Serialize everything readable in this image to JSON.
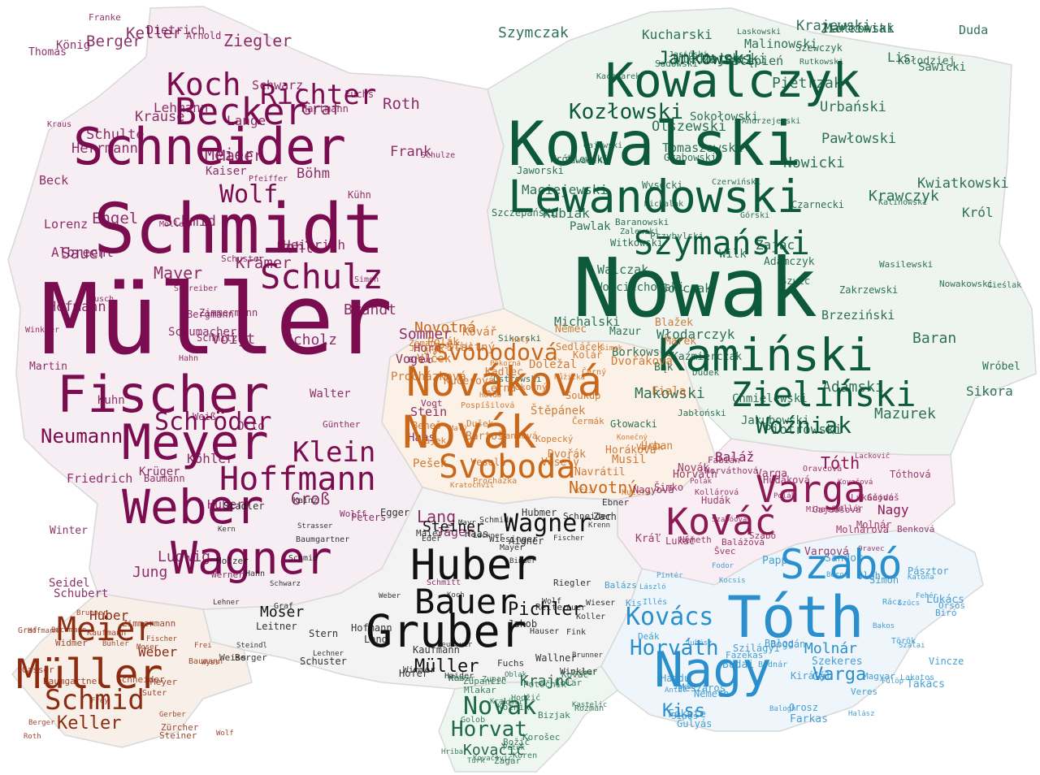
{
  "colors": {
    "germany": "#7a0c4f",
    "poland": "#0c5a3a",
    "czech": "#c9671a",
    "austria": "#111111",
    "hungary": "#2a8fcc",
    "slovakia": "#8c1a55",
    "switzerland": "#8c2b10",
    "slovenia": "#1e6a45"
  },
  "regions": {
    "germany": [
      "Müller",
      "Schmidt",
      "Schneider",
      "Fischer",
      "Meyer",
      "Weber",
      "Wagner",
      "Becker",
      "Schulz",
      "Hoffmann",
      "Koch",
      "Richter",
      "Klein",
      "Wolf",
      "Schröder",
      "Neumann",
      "Schwarz",
      "Zimmermann",
      "Braun",
      "Krüger",
      "Hofmann",
      "Hartmann",
      "Lange",
      "Schmitt",
      "Werner",
      "Schmitz",
      "Krause",
      "Meier",
      "Lehmann",
      "Schmid",
      "Schulze",
      "Maier",
      "Köhler",
      "Herrmann",
      "König",
      "Walter",
      "Mayer",
      "Huber",
      "Kaiser",
      "Fuchs",
      "Peters",
      "Lang",
      "Scholz",
      "Möller",
      "Weiß",
      "Jung",
      "Hahn",
      "Schubert",
      "Vogel",
      "Friedrich",
      "Keller",
      "Günther",
      "Frank",
      "Berger",
      "Winkler",
      "Roth",
      "Beck",
      "Lorenz",
      "Baumann",
      "Franke",
      "Albrecht",
      "Schuster",
      "Simon",
      "Ludwig",
      "Böhm",
      "Winter",
      "Kraus",
      "Martin",
      "Schumacher",
      "Krämer",
      "Vogt",
      "Stein",
      "Jäger",
      "Otto",
      "Sommer",
      "Groß",
      "Seidel",
      "Heinrich",
      "Brandt",
      "Haas",
      "Schreiber",
      "Graf",
      "Schulte",
      "Dietrich",
      "Ziegler",
      "Kuhn",
      "Kühn",
      "Pohl",
      "Engel",
      "Horn",
      "Busch",
      "Bergmann",
      "Thomas",
      "Voigt",
      "Sauer",
      "Arnold",
      "Wolff",
      "Pfeiffer"
    ],
    "poland": [
      "Nowak",
      "Kowalski",
      "Lewandowski",
      "Kamiński",
      "Kowalczyk",
      "Zieliński",
      "Szymański",
      "Woźniak",
      "Kozłowski",
      "Jankowski",
      "Mazur",
      "Wojciechowski",
      "Kwiatkowski",
      "Krawczyk",
      "Kaczmarek",
      "Piotrowski",
      "Grabowski",
      "Nowakowski",
      "Pawłowski",
      "Michalski",
      "Nowicki",
      "Adamczyk",
      "Dudek",
      "Zając",
      "Wieczorek",
      "Jabłoński",
      "Król",
      "Majewski",
      "Olszewski",
      "Jaworski",
      "Wróbel",
      "Malinowski",
      "Pawlak",
      "Witkowski",
      "Walczak",
      "Stępień",
      "Górski",
      "Rutkowski",
      "Michalak",
      "Sikora",
      "Ostrowski",
      "Baran",
      "Duda",
      "Szewczyk",
      "Tomaszewski",
      "Pietrzak",
      "Marciniak",
      "Wróblewski",
      "Zalewski",
      "Jakubowski",
      "Jasiński",
      "Zawadzki",
      "Sadowski",
      "Bąk",
      "Chmielewski",
      "Włodarczyk",
      "Borkowski",
      "Czarnecki",
      "Sawicki",
      "Sokołowski",
      "Urbański",
      "Kubiak",
      "Maciejewski",
      "Szczepański",
      "Kucharski",
      "Wilk",
      "Kalinowski",
      "Lis",
      "Mazurek",
      "Wysocki",
      "Adamski",
      "Kaźmierczak",
      "Wasilewski",
      "Sobczak",
      "Czerwiński",
      "Andrzejewski",
      "Cieślak",
      "Głowacki",
      "Zakrzewski",
      "Kołodziej",
      "Sikorski",
      "Krajewski",
      "Gajewski",
      "Szymczak",
      "Szulc",
      "Baranowski",
      "Laskowski",
      "Brzeziński",
      "Makowski",
      "Ziółkowski",
      "Przybylski"
    ],
    "czech": [
      "Novák",
      "Nováková",
      "Svoboda",
      "Svobodová",
      "Novotný",
      "Novotná",
      "Dvořák",
      "Dvořáková",
      "Černý",
      "Černá",
      "Procházka",
      "Procházková",
      "Kučera",
      "Kučerová",
      "Veselý",
      "Veselá",
      "Horáková",
      "Němec",
      "Marek",
      "Pokorný",
      "Pokorná",
      "Pospíšil",
      "Pospíšilová",
      "Hájek",
      "Jelínek",
      "Růžička",
      "Beneš",
      "Fiala",
      "Sedláček",
      "Doležal",
      "Zeman",
      "Kolář",
      "Navrátil",
      "Čermák",
      "Urban",
      "Vaněk",
      "Blažek",
      "Kříž",
      "Kovář",
      "Bartoš",
      "Vlček",
      "Polák",
      "Musil",
      "Kopecký",
      "Šimek",
      "Konečný",
      "Malý",
      "Holub",
      "Štěpánek",
      "Kadlec",
      "Král",
      "Dušek",
      "Kratochvíl",
      "Jandová",
      "Šťastný",
      "Pešek",
      "Holý",
      "Soukup"
    ],
    "austria": [
      "Gruber",
      "Huber",
      "Bauer",
      "Wagner",
      "Müller",
      "Pichler",
      "Steiner",
      "Moser",
      "Mayer",
      "Hofer",
      "Leitner",
      "Berger",
      "Fuchs",
      "Eder",
      "Fischer",
      "Schmid",
      "Winkler",
      "Weber",
      "Schwarz",
      "Maier",
      "Schneider",
      "Reiter",
      "Mayr",
      "Schmidt",
      "Wimmer",
      "Egger",
      "Brunner",
      "Lang",
      "Baumgartner",
      "Auer",
      "Binder",
      "Lechner",
      "Wolf",
      "Wallner",
      "Aigner",
      "Ebner",
      "Koller",
      "Lehner",
      "Haas",
      "Schuster",
      "Strasser",
      "Holzer",
      "Weiss",
      "Lackner",
      "Hofmann",
      "Kaufmann",
      "Haider",
      "Wieser",
      "Stadler",
      "Stern",
      "Kern",
      "Jakob",
      "Fink",
      "Hauser",
      "Zach",
      "Wiesinger",
      "Koch",
      "Riegler",
      "Hahn",
      "Neubauer",
      "Hubmer",
      "Graf",
      "Steindl",
      "Krenn",
      "Kainz"
    ],
    "hungary": [
      "Nagy",
      "Tóth",
      "Szabó",
      "Kovács",
      "Horváth",
      "Varga",
      "Kiss",
      "Molnár",
      "Németh",
      "Farkas",
      "Balogh",
      "Papp",
      "Takács",
      "Juhász",
      "Lakatos",
      "Mészáros",
      "Oláh",
      "Simon",
      "Rácz",
      "Fekete",
      "Szilágyi",
      "Török",
      "Fehér",
      "Balázs",
      "Gál",
      "Kis",
      "Szűcs",
      "Kocsis",
      "Orsós",
      "Pintér",
      "Fodor",
      "Szalai",
      "Sipos",
      "Magyar",
      "Lukács",
      "Gulyás",
      "Biró",
      "Király",
      "Balog",
      "László",
      "Katona",
      "Jakab",
      "Bogdán",
      "Antal",
      "Sándor",
      "Fazekas",
      "Halász",
      "Deák",
      "Vincze",
      "Veres",
      "Bakos",
      "Orosz",
      "Bodnár",
      "Pásztor",
      "Budai",
      "Hajdu",
      "Fülöp",
      "Boros",
      "Illés",
      "Szekeres"
    ],
    "slovakia": [
      "Varga",
      "Kováč",
      "Tóth",
      "Nagy",
      "Baláž",
      "Horváth",
      "Szabó",
      "Molnár",
      "Kovačová",
      "Vargová",
      "Tóthová",
      "Nagyová",
      "Balážová",
      "Horváthová",
      "Szabóová",
      "Molnárová",
      "Lukáč",
      "Lukáčová",
      "Németh",
      "Kollár",
      "Oravec",
      "Gajdoš",
      "Hudák",
      "Polák",
      "Benková",
      "Kráľ",
      "Novák",
      "Lackovič",
      "Švec",
      "Šimko",
      "Mihalik",
      "Fabián",
      "Hudáková",
      "Gajdošová",
      "Kollárová",
      "Oravcová",
      "Polák",
      "Varga"
    ],
    "switzerland": [
      "Müller",
      "Meier",
      "Schmid",
      "Keller",
      "Weber",
      "Huber",
      "Meyer",
      "Schneider",
      "Steiner",
      "Fischer",
      "Gerber",
      "Brunner",
      "Baumann",
      "Frei",
      "Zimmermann",
      "Moser",
      "Widmer",
      "Wyss",
      "Graf",
      "Roth",
      "Kaufmann",
      "Bühler",
      "Suter",
      "Frey",
      "Berger",
      "Baumgartner",
      "Hofmann",
      "Bachmann",
      "Wolf",
      "Zürcher",
      "Gasser"
    ],
    "slovenia": [
      "Novak",
      "Horvat",
      "Kovačič",
      "Krajnc",
      "Zupančič",
      "Potočnik",
      "Kovač",
      "Mlakar",
      "Kos",
      "Vidmar",
      "Golob",
      "Turk",
      "Božič",
      "Kralj",
      "Zupan",
      "Bizjak",
      "Hribar",
      "Korošec",
      "Rozman",
      "Kotnik",
      "Oblak",
      "Petek",
      "Kolar",
      "Kastelic",
      "Žagar",
      "Košir",
      "Koren",
      "Mlakar",
      "Hodžić",
      "Kovačević"
    ]
  }
}
